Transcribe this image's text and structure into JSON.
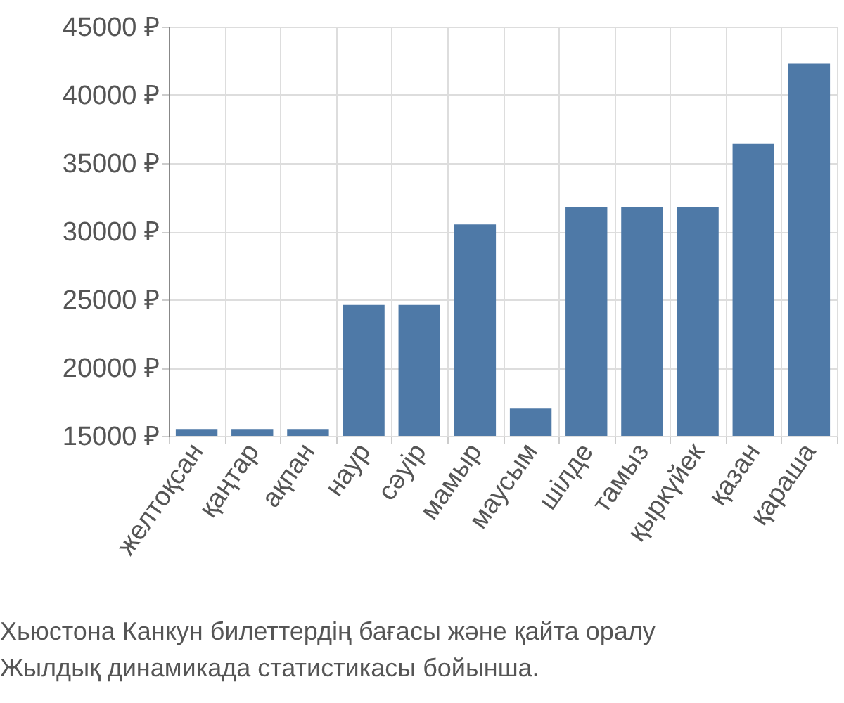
{
  "chart_data": {
    "type": "bar",
    "categories": [
      "желтоқсан",
      "қаңтар",
      "ақпан",
      "наур",
      "сәуір",
      "мамыр",
      "маусым",
      "шілде",
      "тамыз",
      "қыркүйек",
      "қазан",
      "қараша"
    ],
    "values": [
      15500,
      15500,
      15500,
      24600,
      24600,
      30500,
      17000,
      31800,
      31800,
      31800,
      36400,
      42300
    ],
    "color": "#4e79a7",
    "ylim": [
      15000,
      45000
    ],
    "yticks": [
      {
        "value": 15000,
        "label": "15000 ₽"
      },
      {
        "value": 20000,
        "label": "20000 ₽"
      },
      {
        "value": 25000,
        "label": "25000 ₽"
      },
      {
        "value": 30000,
        "label": "30000 ₽"
      },
      {
        "value": 35000,
        "label": "35000 ₽"
      },
      {
        "value": 40000,
        "label": "40000 ₽"
      },
      {
        "value": 45000,
        "label": "45000 ₽"
      }
    ],
    "grid": true,
    "annotations": [
      "Хьюстона Канкун билеттердің бағасы және қайта оралу",
      "Жылдық динамикада статистикасы бойынша."
    ]
  }
}
